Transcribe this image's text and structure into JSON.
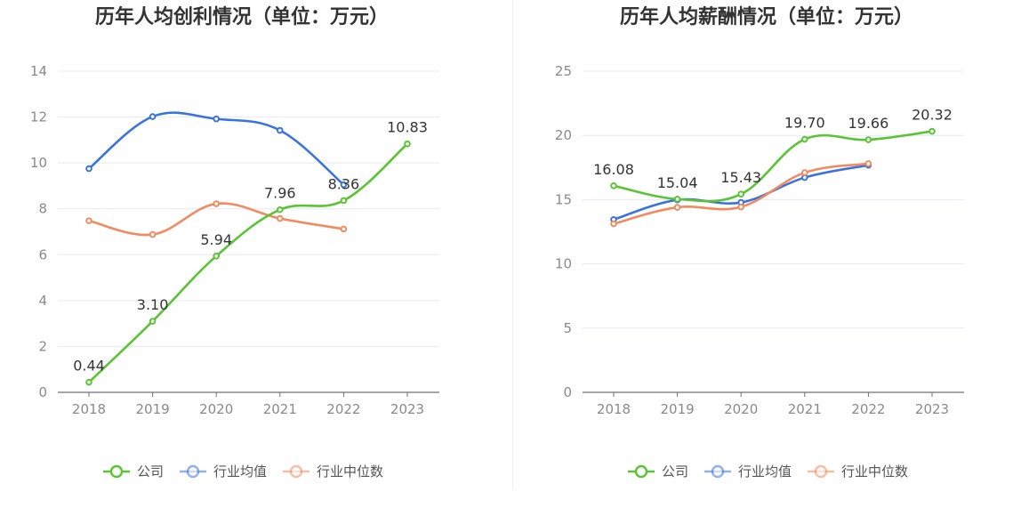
{
  "chart_data": [
    {
      "type": "line",
      "title": "历年人均创利情况（单位：万元）",
      "categories": [
        "2018",
        "2019",
        "2020",
        "2021",
        "2022",
        "2023"
      ],
      "ylim": [
        0,
        14
      ],
      "yticks": [
        0,
        2,
        4,
        6,
        8,
        10,
        12,
        14
      ],
      "grid": true,
      "legend_position": "bottom-center",
      "series": [
        {
          "name": "公司",
          "color": "#5ac434",
          "values": [
            0.44,
            3.1,
            5.94,
            7.96,
            8.36,
            10.83
          ],
          "labels": [
            "0.44",
            "3.10",
            "5.94",
            "7.96",
            "8.36",
            "10.83"
          ]
        },
        {
          "name": "行业均值",
          "color": "#3b73dd",
          "values": [
            9.75,
            12.02,
            11.92,
            11.42,
            9.05,
            null
          ]
        },
        {
          "name": "行业中位数",
          "color": "#f28a5f",
          "values": [
            7.48,
            6.88,
            8.22,
            7.58,
            7.12,
            null
          ]
        }
      ]
    },
    {
      "type": "line",
      "title": "历年人均薪酬情况（单位：万元）",
      "categories": [
        "2018",
        "2019",
        "2020",
        "2021",
        "2022",
        "2023"
      ],
      "ylim": [
        0,
        25
      ],
      "yticks": [
        0,
        5,
        10,
        15,
        20,
        25
      ],
      "grid": true,
      "legend_position": "bottom-center",
      "series": [
        {
          "name": "公司",
          "color": "#5ac434",
          "values": [
            16.08,
            15.04,
            15.43,
            19.7,
            19.66,
            20.32
          ],
          "labels": [
            "16.08",
            "15.04",
            "15.43",
            "19.70",
            "19.66",
            "20.32"
          ]
        },
        {
          "name": "行业均值",
          "color": "#3b73dd",
          "values": [
            13.45,
            14.98,
            14.78,
            16.72,
            17.68,
            null
          ]
        },
        {
          "name": "行业中位数",
          "color": "#f28a5f",
          "values": [
            13.12,
            14.4,
            14.43,
            17.1,
            17.8,
            null
          ]
        }
      ]
    }
  ]
}
